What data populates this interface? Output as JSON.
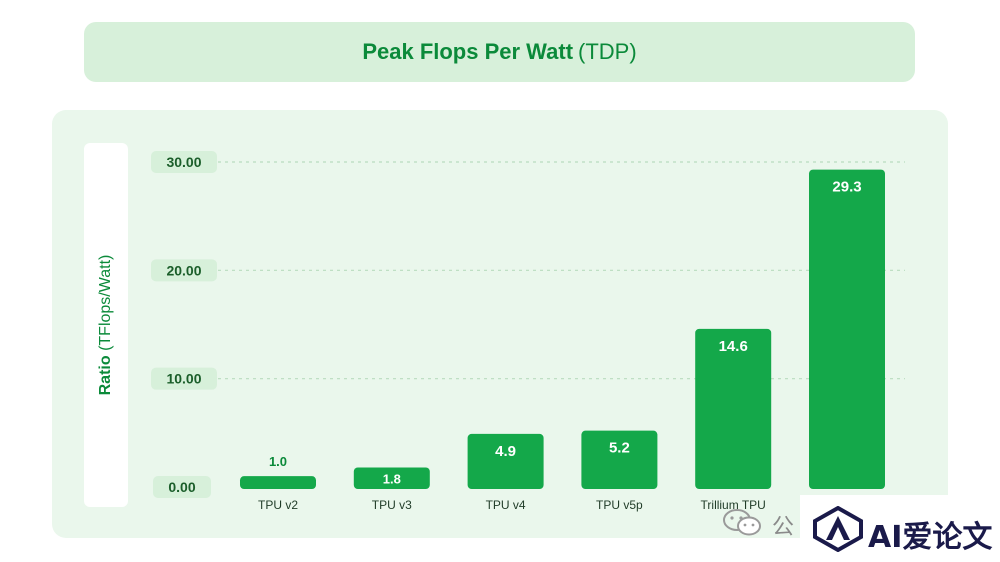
{
  "chart_data": {
    "type": "bar",
    "title": "Peak Flops Per Watt",
    "title_suffix": "(TDP)",
    "ylabel_bold": "Ratio",
    "ylabel_rest": "(TFlops/Watt)",
    "xlabel": "",
    "categories": [
      "TPU v2",
      "TPU v3",
      "TPU v4",
      "TPU v5p",
      "Trillium TPU",
      ""
    ],
    "values": [
      1.0,
      1.8,
      4.9,
      5.2,
      14.6,
      29.3
    ],
    "data_labels": [
      "1.0",
      "1.8",
      "4.9",
      "5.2",
      "14.6",
      "29.3"
    ],
    "yticks": [
      "0.00",
      "10.00",
      "20.00",
      "30.00"
    ],
    "ytick_values": [
      0,
      10,
      20,
      30
    ],
    "ylim": [
      0,
      30
    ],
    "grid": true,
    "legend": "none",
    "colors": {
      "bar": "#14a84a",
      "bar_label_inside": "#ffffff",
      "bar_label_outside": "#0b8a3a",
      "tick_badge": "#d7f0da",
      "tick_text": "#1b5e2a",
      "grid": "#b9dcbf",
      "panel": "#eaf7ec",
      "banner": "#d7f0da",
      "accent": "#0b8a3a"
    }
  },
  "watermark": {
    "gong": "公",
    "brand": "AI爱论文"
  }
}
